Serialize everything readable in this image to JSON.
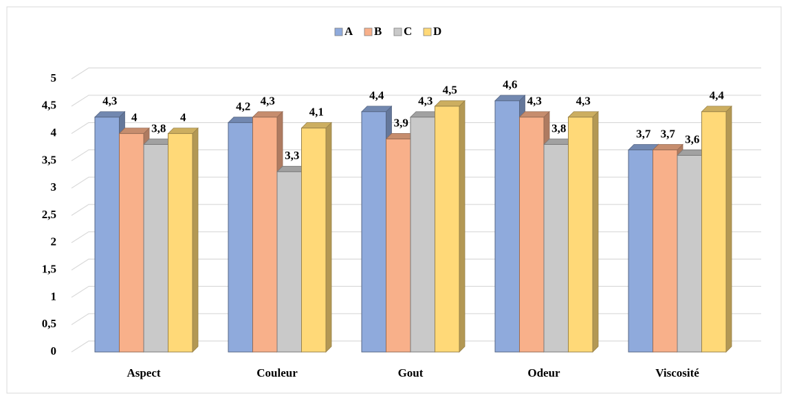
{
  "chart_data": {
    "type": "bar",
    "categories": [
      "Aspect",
      "Couleur",
      "Gout",
      "Odeur",
      "Viscosité"
    ],
    "series": [
      {
        "name": "A",
        "color": "#8faadc",
        "values": [
          4.3,
          4.2,
          4.4,
          4.6,
          3.7
        ],
        "value_labels": [
          "4,3",
          "4,2",
          "4,4",
          "4,6",
          "3,7"
        ]
      },
      {
        "name": "B",
        "color": "#f8b08a",
        "values": [
          4,
          4.3,
          3.9,
          4.3,
          3.7
        ],
        "value_labels": [
          "4",
          "4,3",
          "3,9",
          "4,3",
          "3,7"
        ]
      },
      {
        "name": "C",
        "color": "#c9c9c9",
        "values": [
          3.8,
          3.3,
          4.3,
          3.8,
          3.6
        ],
        "value_labels": [
          "3,8",
          "3,3",
          "4,3",
          "3,8",
          "3,6"
        ]
      },
      {
        "name": "D",
        "color": "#ffd978",
        "values": [
          4,
          4.1,
          4.5,
          4.3,
          4.4
        ],
        "value_labels": [
          "4",
          "4,1",
          "4,5",
          "4,3",
          "4,4"
        ]
      }
    ],
    "ylim": [
      0,
      5
    ],
    "yticks": [
      0,
      {
        "value": 0.5,
        "label": "0,5"
      },
      1,
      {
        "value": 1.5,
        "label": "1,5"
      },
      2,
      {
        "value": 2.5,
        "label": "2,5"
      },
      3,
      {
        "value": 3.5,
        "label": "3,5"
      },
      4,
      {
        "value": 4.5,
        "label": "4,5"
      },
      5
    ],
    "grid": true,
    "legend": "top"
  }
}
